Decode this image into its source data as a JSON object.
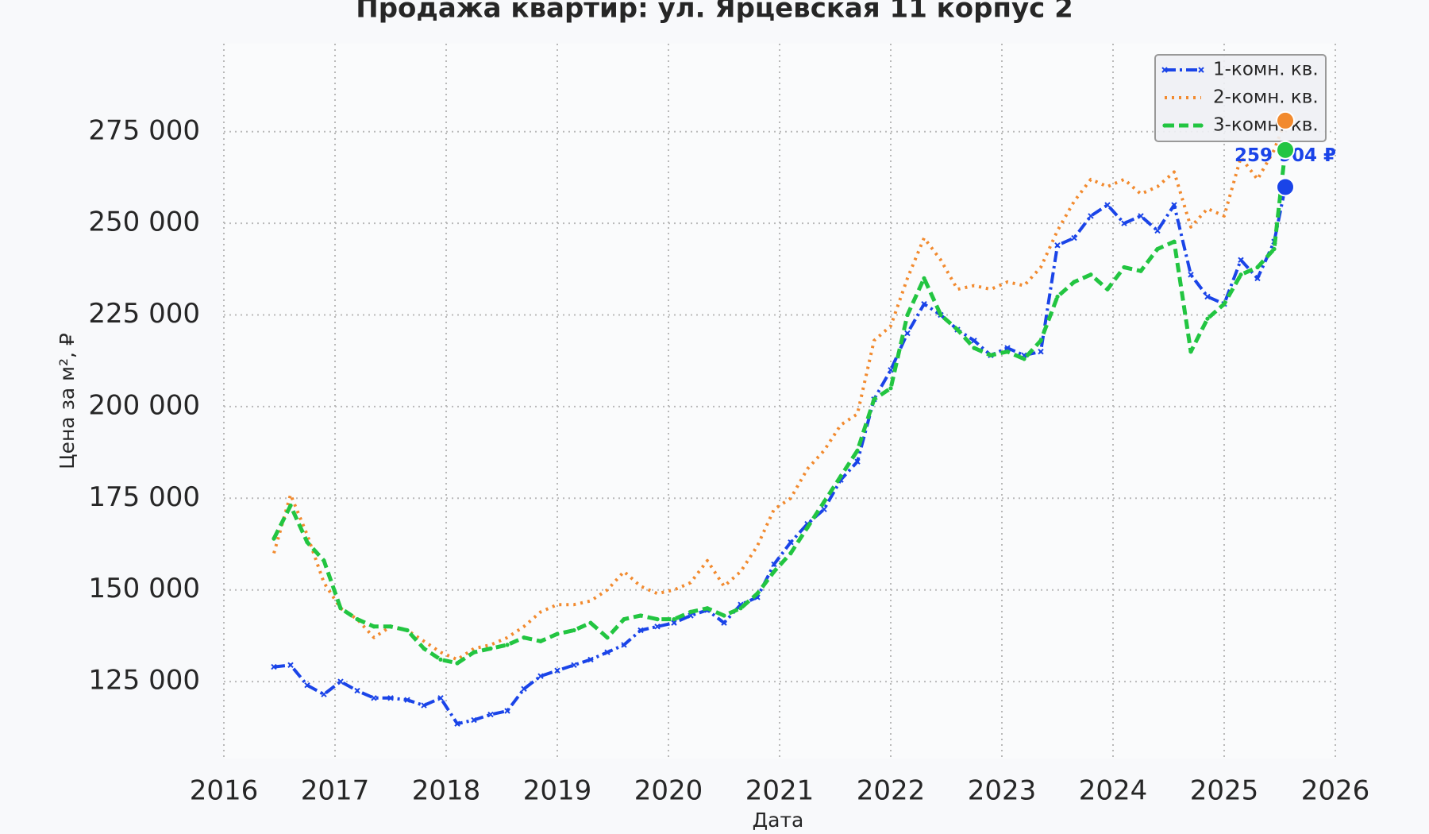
{
  "chart_data": {
    "type": "line",
    "title": "Продажа квартир: ул. Ярцевская 11 корпус 2",
    "x_label": "Дата",
    "y_label": "Цена за м², ₽",
    "xlim": [
      2016,
      2026
    ],
    "xticks": [
      2016,
      2017,
      2018,
      2019,
      2020,
      2021,
      2022,
      2023,
      2024,
      2025,
      2026
    ],
    "ylim": [
      104000,
      299000
    ],
    "yticks": [
      {
        "value": 125000,
        "label": "125 000"
      },
      {
        "value": 150000,
        "label": "150 000"
      },
      {
        "value": 175000,
        "label": "175 000"
      },
      {
        "value": 200000,
        "label": "200 000"
      },
      {
        "value": 225000,
        "label": "225 000"
      },
      {
        "value": 250000,
        "label": "250 000"
      },
      {
        "value": 275000,
        "label": "275 000"
      }
    ],
    "grid": true,
    "legend": "upper right",
    "x": [
      2016.45,
      2016.6,
      2016.75,
      2016.9,
      2017.05,
      2017.2,
      2017.35,
      2017.5,
      2017.65,
      2017.8,
      2017.95,
      2018.1,
      2018.25,
      2018.4,
      2018.55,
      2018.7,
      2018.85,
      2019.0,
      2019.15,
      2019.3,
      2019.45,
      2019.6,
      2019.75,
      2019.9,
      2020.05,
      2020.2,
      2020.35,
      2020.5,
      2020.65,
      2020.8,
      2020.95,
      2021.1,
      2021.25,
      2021.4,
      2021.55,
      2021.7,
      2021.85,
      2022.0,
      2022.15,
      2022.3,
      2022.45,
      2022.6,
      2022.75,
      2022.9,
      2023.05,
      2023.2,
      2023.35,
      2023.5,
      2023.65,
      2023.8,
      2023.95,
      2024.1,
      2024.25,
      2024.4,
      2024.55,
      2024.7,
      2024.85,
      2025.0,
      2025.15,
      2025.3,
      2025.45,
      2025.55
    ],
    "series": [
      {
        "name": "1-комн. кв.",
        "color": "#1a44e8",
        "style": "dashdot",
        "marker": "x",
        "end_marker": true,
        "values": [
          129000,
          129500,
          124000,
          121500,
          125000,
          122500,
          120500,
          120500,
          120000,
          118500,
          120500,
          113500,
          114500,
          116000,
          117000,
          123000,
          126500,
          128000,
          129500,
          131000,
          133000,
          135000,
          139000,
          140000,
          141000,
          143000,
          144500,
          141000,
          146000,
          148000,
          157000,
          163000,
          168000,
          172000,
          180000,
          185000,
          202000,
          210000,
          220000,
          228000,
          225000,
          221000,
          218000,
          214000,
          216000,
          214000,
          215000,
          244000,
          246000,
          252000,
          255000,
          250000,
          252000,
          248000,
          255000,
          236000,
          230000,
          228000,
          240000,
          235000,
          245000,
          259904
        ],
        "value_labels": [
          null,
          null,
          null,
          null,
          null,
          null,
          null,
          null,
          null,
          null,
          null,
          null,
          null,
          null,
          null,
          null,
          null,
          null,
          null,
          null,
          null,
          null,
          null,
          null,
          null,
          null,
          null,
          null,
          null,
          null,
          null,
          null,
          null,
          null,
          null,
          null,
          null,
          null,
          null,
          null,
          null,
          null,
          null,
          null,
          null,
          null,
          null,
          null,
          null,
          null,
          null,
          null,
          null,
          null,
          null,
          null,
          null,
          null,
          null,
          null,
          null,
          "259 904 ₽"
        ]
      },
      {
        "name": "2-комн. кв.",
        "color": "#f28a2e",
        "style": "dotted",
        "marker": "none",
        "end_marker": true,
        "values": [
          160000,
          176000,
          165000,
          152000,
          145000,
          142000,
          137000,
          140000,
          139000,
          136000,
          133000,
          131000,
          134000,
          135000,
          137000,
          140000,
          144000,
          146000,
          146000,
          147000,
          150000,
          155000,
          151000,
          149000,
          150000,
          152000,
          158000,
          151000,
          155000,
          162000,
          172000,
          175000,
          183000,
          188000,
          195000,
          198000,
          218000,
          222000,
          235000,
          246000,
          240000,
          232000,
          233000,
          232000,
          234000,
          233000,
          238000,
          248000,
          256000,
          262000,
          260000,
          262000,
          258000,
          260000,
          264000,
          249000,
          254000,
          252000,
          268000,
          262000,
          270000,
          278000
        ]
      },
      {
        "name": "3-комн. кв.",
        "color": "#22c541",
        "style": "dashed",
        "marker": "dot",
        "end_marker": true,
        "values": [
          164000,
          173000,
          163000,
          158000,
          145000,
          142000,
          140000,
          140000,
          139000,
          134000,
          131000,
          130000,
          133000,
          134000,
          135000,
          137000,
          136000,
          138000,
          139000,
          141000,
          137000,
          142000,
          143000,
          142000,
          142000,
          144000,
          145000,
          143000,
          145000,
          149000,
          155000,
          160000,
          167000,
          174000,
          181000,
          188000,
          202000,
          205000,
          225000,
          235000,
          225000,
          221000,
          216000,
          214000,
          215000,
          213000,
          218000,
          230000,
          234000,
          236000,
          232000,
          238000,
          237000,
          243000,
          245000,
          215000,
          224000,
          228000,
          236000,
          238000,
          243000,
          270000
        ]
      }
    ]
  }
}
